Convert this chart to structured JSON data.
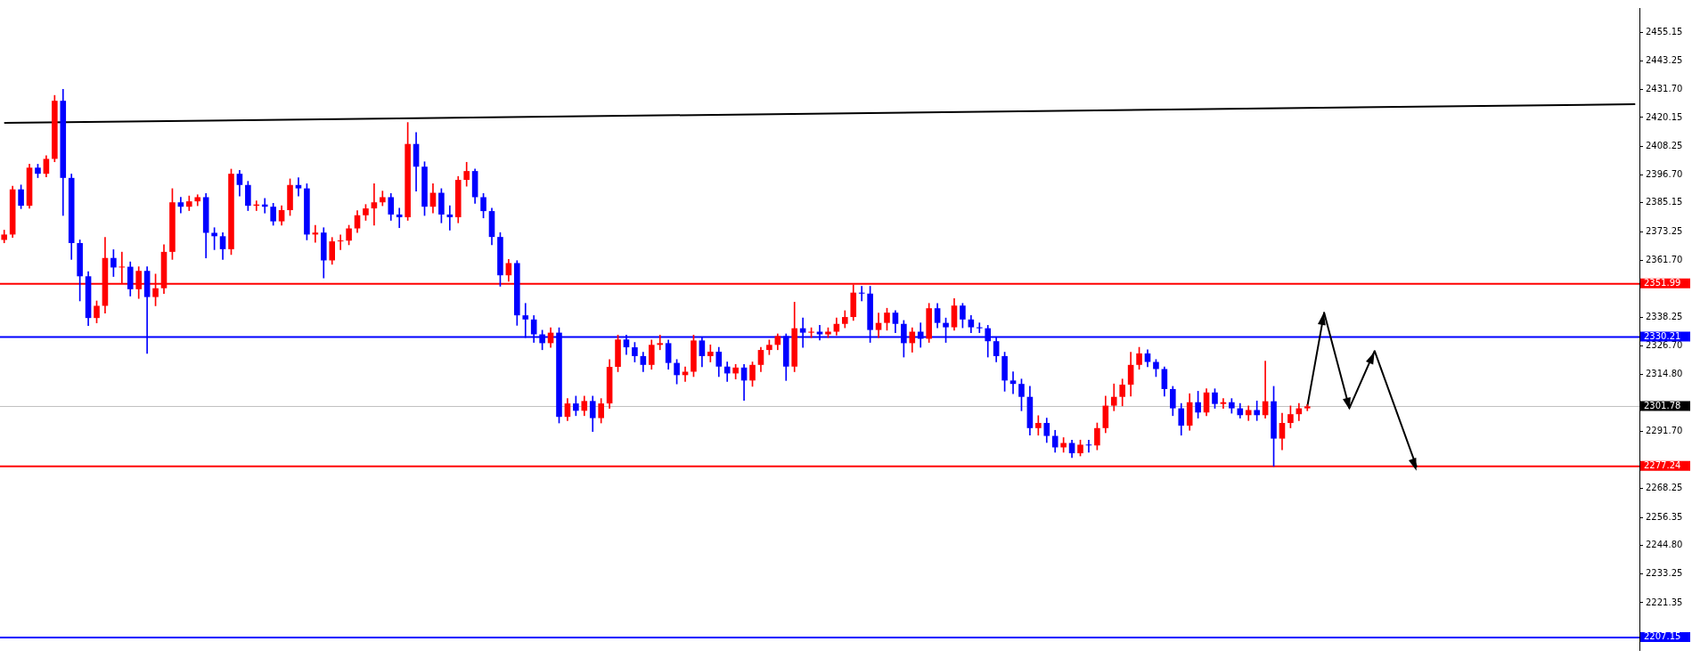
{
  "chart_data": {
    "type": "candlestick",
    "categories": [
      null,
      null,
      null,
      null,
      null,
      null,
      null,
      null,
      null,
      null,
      null,
      null,
      null,
      null,
      null,
      null,
      null,
      null,
      null,
      null,
      null,
      null,
      null,
      null,
      null,
      null,
      null,
      null,
      null,
      null,
      null,
      null,
      null,
      null,
      null,
      null,
      null,
      null,
      null,
      null,
      null,
      null,
      null,
      null,
      null,
      null,
      null,
      null,
      null,
      null,
      null,
      null,
      null,
      null,
      null,
      null,
      null,
      null,
      null,
      null,
      null,
      null,
      null,
      null,
      null,
      null,
      null,
      null,
      null,
      null,
      null,
      null,
      null,
      null,
      null,
      null,
      null,
      null,
      null,
      null,
      null,
      null,
      null,
      null,
      null,
      null,
      null,
      null,
      null,
      null,
      null,
      null,
      null,
      null,
      null,
      null,
      null,
      null,
      null,
      null,
      null,
      null,
      null,
      null,
      null,
      null,
      null,
      null,
      null,
      null,
      null,
      null,
      null,
      null,
      null,
      null,
      null,
      null,
      null,
      null,
      null,
      null,
      null,
      null,
      null,
      null,
      null,
      null,
      null,
      null,
      null,
      null,
      null,
      null,
      null,
      null,
      null,
      null,
      null,
      null,
      null,
      null,
      null,
      null,
      null,
      null,
      null,
      null,
      null,
      null,
      null,
      null,
      null,
      null,
      null,
      null,
      null,
      null,
      null,
      null,
      null,
      null,
      null,
      null,
      null,
      null,
      null,
      null,
      null,
      null,
      null,
      null,
      null,
      null,
      null,
      null,
      null,
      null,
      null,
      null,
      null,
      null,
      null,
      null,
      null,
      null,
      null,
      null,
      null,
      null,
      null,
      null,
      null,
      null,
      null
    ],
    "ohlc": [
      [
        2370,
        2374,
        2368.8,
        2372.2
      ],
      [
        2372.2,
        2392,
        2371,
        2390.7
      ],
      [
        2390.7,
        2392.5,
        2382.8,
        2384
      ],
      [
        2384,
        2401,
        2383,
        2399.6
      ],
      [
        2399.6,
        2401,
        2395.5,
        2397.1
      ],
      [
        2397.1,
        2404.5,
        2395.8,
        2403.2
      ],
      [
        2403.2,
        2429.2,
        2402,
        2427
      ],
      [
        2427,
        2431.7,
        2380,
        2395.4
      ],
      [
        2395.4,
        2397,
        2362,
        2368.7
      ],
      [
        2368.7,
        2370,
        2345,
        2355.1
      ],
      [
        2355.1,
        2357,
        2334.9,
        2338
      ],
      [
        2338,
        2345,
        2336,
        2343
      ],
      [
        2343,
        2371,
        2340,
        2362.6
      ],
      [
        2362.6,
        2366,
        2355,
        2358.7
      ],
      [
        2358.7,
        2365,
        2352,
        2359
      ],
      [
        2359,
        2361,
        2347,
        2349.8
      ],
      [
        2349.8,
        2359,
        2346,
        2357.3
      ],
      [
        2357.3,
        2359,
        2323.5,
        2346.6
      ],
      [
        2346.6,
        2356,
        2343,
        2350.2
      ],
      [
        2350.2,
        2368,
        2348,
        2365.1
      ],
      [
        2365.1,
        2391,
        2362,
        2385.4
      ],
      [
        2385.4,
        2387.5,
        2381,
        2383.6
      ],
      [
        2383.6,
        2388,
        2382,
        2385.8
      ],
      [
        2385.8,
        2388.5,
        2384,
        2387.5
      ],
      [
        2387.5,
        2389,
        2362.6,
        2372.9
      ],
      [
        2372.9,
        2375,
        2366,
        2371.5
      ],
      [
        2371.5,
        2373,
        2362,
        2366.2
      ],
      [
        2366.2,
        2399,
        2364,
        2397.1
      ],
      [
        2397.1,
        2398.5,
        2388,
        2392.5
      ],
      [
        2392.5,
        2394,
        2382,
        2384
      ],
      [
        2384,
        2386,
        2382,
        2384.5
      ],
      [
        2384.5,
        2387,
        2381,
        2383.6
      ],
      [
        2383.6,
        2385,
        2376,
        2377.6
      ],
      [
        2377.6,
        2384,
        2376,
        2382.2
      ],
      [
        2382.2,
        2395,
        2380,
        2392.5
      ],
      [
        2392.5,
        2395.5,
        2388,
        2391.1
      ],
      [
        2391.1,
        2393,
        2370,
        2372.2
      ],
      [
        2372.2,
        2376,
        2369,
        2373
      ],
      [
        2373,
        2375,
        2354.4,
        2361.6
      ],
      [
        2361.6,
        2371,
        2360,
        2369.4
      ],
      [
        2369.4,
        2372,
        2366,
        2369.7
      ],
      [
        2369.7,
        2376,
        2368,
        2374.7
      ],
      [
        2374.7,
        2382,
        2373,
        2380.1
      ],
      [
        2380.1,
        2384.5,
        2378,
        2382.9
      ],
      [
        2382.9,
        2393,
        2376,
        2385.4
      ],
      [
        2385.4,
        2390,
        2384,
        2387.5
      ],
      [
        2387.5,
        2389,
        2378,
        2380.4
      ],
      [
        2380.4,
        2383,
        2375,
        2379.3
      ],
      [
        2379.3,
        2418.1,
        2378,
        2409.3
      ],
      [
        2409.3,
        2414,
        2390,
        2400
      ],
      [
        2400,
        2402,
        2380,
        2383.6
      ],
      [
        2383.6,
        2393,
        2381,
        2389.3
      ],
      [
        2389.3,
        2391,
        2377,
        2380.4
      ],
      [
        2380.4,
        2384,
        2374,
        2379.3
      ],
      [
        2379.3,
        2396,
        2377,
        2394.6
      ],
      [
        2394.6,
        2401.8,
        2392,
        2398.2
      ],
      [
        2398.2,
        2399,
        2385,
        2387.5
      ],
      [
        2387.5,
        2389,
        2379,
        2381.8
      ],
      [
        2381.8,
        2383,
        2368,
        2371.2
      ],
      [
        2371.2,
        2373,
        2351,
        2355.5
      ],
      [
        2355.5,
        2362,
        2353,
        2360.5
      ],
      [
        2360.5,
        2361.5,
        2335,
        2339.1
      ],
      [
        2339.1,
        2344,
        2330,
        2337.4
      ],
      [
        2337.4,
        2339,
        2328,
        2331.3
      ],
      [
        2331.3,
        2333,
        2325,
        2327.7
      ],
      [
        2327.7,
        2334,
        2326,
        2332
      ],
      [
        2332,
        2334,
        2295,
        2297.5
      ],
      [
        2297.5,
        2305,
        2296,
        2303
      ],
      [
        2303,
        2306,
        2298,
        2300
      ],
      [
        2300,
        2306,
        2298,
        2304
      ],
      [
        2304,
        2306,
        2291.5,
        2297
      ],
      [
        2297,
        2305,
        2295,
        2303
      ],
      [
        2303,
        2321,
        2301,
        2318
      ],
      [
        2318,
        2331,
        2316,
        2329.2
      ],
      [
        2329.2,
        2331,
        2323,
        2326
      ],
      [
        2326,
        2328,
        2320,
        2322.4
      ],
      [
        2322.4,
        2324,
        2316,
        2318.8
      ],
      [
        2318.8,
        2329,
        2317,
        2327
      ],
      [
        2327,
        2331,
        2325,
        2327.7
      ],
      [
        2327.7,
        2329,
        2317,
        2319.6
      ],
      [
        2319.6,
        2321,
        2311,
        2314.6
      ],
      [
        2314.6,
        2318,
        2312,
        2316
      ],
      [
        2316,
        2331,
        2314,
        2328.8
      ],
      [
        2328.8,
        2330,
        2318,
        2322.4
      ],
      [
        2322.4,
        2327,
        2320,
        2324.2
      ],
      [
        2324.2,
        2326,
        2314,
        2318.1
      ],
      [
        2318.1,
        2320,
        2312,
        2315.3
      ],
      [
        2315.3,
        2319,
        2313,
        2317.7
      ],
      [
        2317.7,
        2319,
        2304.3,
        2312.4
      ],
      [
        2312.4,
        2320,
        2310,
        2318.8
      ],
      [
        2318.8,
        2326,
        2316,
        2324.9
      ],
      [
        2324.9,
        2329,
        2323,
        2327
      ],
      [
        2327,
        2331.5,
        2325,
        2330.6
      ],
      [
        2330.6,
        2331.5,
        2312.4,
        2318.1
      ],
      [
        2318.1,
        2344.5,
        2316,
        2333.8
      ],
      [
        2333.8,
        2338,
        2326,
        2332
      ],
      [
        2332,
        2334,
        2330,
        2332.4
      ],
      [
        2332.4,
        2335,
        2329,
        2331.3
      ],
      [
        2331.3,
        2334,
        2330,
        2332.4
      ],
      [
        2332.4,
        2338,
        2331,
        2335.6
      ],
      [
        2335.6,
        2341,
        2334,
        2338.4
      ],
      [
        2338.4,
        2351.6,
        2337,
        2348.4
      ],
      [
        2348.4,
        2351,
        2345,
        2348
      ],
      [
        2348,
        2351,
        2328,
        2333.1
      ],
      [
        2333.1,
        2340,
        2330,
        2336
      ],
      [
        2336,
        2342,
        2333,
        2340.2
      ],
      [
        2340.2,
        2341,
        2332,
        2335.6
      ],
      [
        2335.6,
        2337,
        2322,
        2327.7
      ],
      [
        2327.7,
        2334,
        2324,
        2332.4
      ],
      [
        2332.4,
        2336,
        2326,
        2329.5
      ],
      [
        2329.5,
        2344,
        2328,
        2342
      ],
      [
        2342,
        2344,
        2334,
        2336
      ],
      [
        2336,
        2338,
        2328,
        2334.2
      ],
      [
        2334.2,
        2346,
        2333,
        2343.1
      ],
      [
        2343.1,
        2344,
        2334,
        2337.4
      ],
      [
        2337.4,
        2339,
        2332,
        2334.2
      ],
      [
        2334.2,
        2336,
        2332,
        2333.8
      ],
      [
        2333.8,
        2335,
        2322,
        2328.5
      ],
      [
        2328.5,
        2330,
        2320,
        2322.4
      ],
      [
        2322.4,
        2324,
        2308,
        2312.4
      ],
      [
        2312.4,
        2316,
        2307,
        2311
      ],
      [
        2311,
        2313,
        2300,
        2305.7
      ],
      [
        2305.7,
        2310,
        2290,
        2292.9
      ],
      [
        2292.9,
        2298,
        2290,
        2295
      ],
      [
        2295,
        2297,
        2287,
        2289.7
      ],
      [
        2289.7,
        2292,
        2283,
        2285
      ],
      [
        2285,
        2289,
        2283,
        2286.8
      ],
      [
        2286.8,
        2288,
        2280.8,
        2282.6
      ],
      [
        2282.6,
        2288,
        2281.5,
        2286.1
      ],
      [
        2286.1,
        2288,
        2283,
        2285.8
      ],
      [
        2285.8,
        2295,
        2284,
        2292.9
      ],
      [
        2292.9,
        2306,
        2291,
        2302.1
      ],
      [
        2302.1,
        2311,
        2300,
        2305.7
      ],
      [
        2305.7,
        2313,
        2302,
        2310.7
      ],
      [
        2310.7,
        2324,
        2306,
        2318.8
      ],
      [
        2318.8,
        2326,
        2317,
        2323.5
      ],
      [
        2323.5,
        2325,
        2318,
        2320
      ],
      [
        2320,
        2321,
        2314,
        2317.1
      ],
      [
        2317.1,
        2318,
        2306,
        2308.9
      ],
      [
        2308.9,
        2310,
        2298,
        2301
      ],
      [
        2301,
        2303,
        2290,
        2293.9
      ],
      [
        2293.9,
        2307,
        2292,
        2303.5
      ],
      [
        2303.5,
        2308,
        2297,
        2299.3
      ],
      [
        2299.3,
        2309,
        2298,
        2307.5
      ],
      [
        2307.5,
        2309,
        2301,
        2302.8
      ],
      [
        2302.8,
        2305,
        2301,
        2303.5
      ],
      [
        2303.5,
        2305,
        2299,
        2301
      ],
      [
        2301,
        2303,
        2297,
        2298.2
      ],
      [
        2298.2,
        2302,
        2296,
        2300.3
      ],
      [
        2300.3,
        2304,
        2296,
        2298.2
      ],
      [
        2298.2,
        2320.3,
        2297,
        2303.9
      ],
      [
        2303.9,
        2310,
        2277.3,
        2288.6
      ],
      [
        2288.6,
        2299,
        2284,
        2295
      ],
      [
        2295,
        2302,
        2293,
        2298.6
      ],
      [
        2298.6,
        2303,
        2296,
        2301
      ],
      [
        2301,
        2302.5,
        2300,
        2301.8
      ],
      null,
      null,
      null,
      null,
      null,
      null,
      null,
      null,
      null,
      null,
      null,
      null,
      null,
      null,
      null,
      null,
      null,
      null,
      null,
      null,
      null,
      null,
      null,
      null,
      null,
      null,
      null,
      null,
      null,
      null,
      null,
      null,
      null,
      null,
      null,
      null,
      null,
      null,
      null
    ],
    "colors": [
      "#ff0000",
      "#ff0000",
      "#0000ff",
      "#ff0000",
      "#0000ff",
      "#ff0000",
      "#ff0000",
      "#0000ff",
      "#0000ff",
      "#0000ff",
      "#0000ff",
      "#ff0000",
      "#ff0000",
      "#0000ff",
      "#ff0000",
      "#0000ff",
      "#ff0000",
      "#0000ff",
      "#ff0000",
      "#ff0000",
      "#ff0000",
      "#0000ff",
      "#ff0000",
      "#ff0000",
      "#0000ff",
      "#0000ff",
      "#0000ff",
      "#ff0000",
      "#0000ff",
      "#0000ff",
      "#ff0000",
      "#0000ff",
      "#0000ff",
      "#ff0000",
      "#ff0000",
      "#0000ff",
      "#0000ff",
      "#ff0000",
      "#0000ff",
      "#ff0000",
      "#ff0000",
      "#ff0000",
      "#ff0000",
      "#ff0000",
      "#ff0000",
      "#ff0000",
      "#0000ff",
      "#0000ff",
      "#ff0000",
      "#0000ff",
      "#0000ff",
      "#ff0000",
      "#0000ff",
      "#0000ff",
      "#ff0000",
      "#ff0000",
      "#0000ff",
      "#0000ff",
      "#0000ff",
      "#0000ff",
      "#ff0000",
      "#0000ff",
      "#0000ff",
      "#0000ff",
      "#0000ff",
      "#ff0000",
      "#0000ff",
      "#ff0000",
      "#0000ff",
      "#ff0000",
      "#0000ff",
      "#ff0000",
      "#ff0000",
      "#ff0000",
      "#0000ff",
      "#0000ff",
      "#0000ff",
      "#ff0000",
      "#ff0000",
      "#0000ff",
      "#0000ff",
      "#ff0000",
      "#ff0000",
      "#0000ff",
      "#ff0000",
      "#0000ff",
      "#0000ff",
      "#ff0000",
      "#0000ff",
      "#ff0000",
      "#ff0000",
      "#ff0000",
      "#ff0000",
      "#0000ff",
      "#ff0000",
      "#0000ff",
      "#ff0000",
      "#0000ff",
      "#ff0000",
      "#ff0000",
      "#ff0000",
      "#ff0000",
      "#0000ff",
      "#0000ff",
      "#ff0000",
      "#ff0000",
      "#0000ff",
      "#0000ff",
      "#ff0000",
      "#0000ff",
      "#ff0000",
      "#0000ff",
      "#0000ff",
      "#ff0000",
      "#0000ff",
      "#0000ff",
      "#0000ff",
      "#0000ff",
      "#0000ff",
      "#0000ff",
      "#0000ff",
      "#0000ff",
      "#0000ff",
      "#ff0000",
      "#0000ff",
      "#0000ff",
      "#ff0000",
      "#0000ff",
      "#ff0000",
      "#0000ff",
      "#ff0000",
      "#ff0000",
      "#ff0000",
      "#ff0000",
      "#ff0000",
      "#ff0000",
      "#0000ff",
      "#0000ff",
      "#0000ff",
      "#0000ff",
      "#0000ff",
      "#ff0000",
      "#0000ff",
      "#ff0000",
      "#0000ff",
      "#ff0000",
      "#0000ff",
      "#0000ff",
      "#ff0000",
      "#0000ff",
      "#ff0000",
      "#0000ff",
      "#ff0000",
      "#ff0000",
      "#ff0000",
      "#ff0000",
      null,
      null,
      null,
      null,
      null,
      null,
      null,
      null,
      null,
      null,
      null,
      null,
      null,
      null,
      null,
      null,
      null,
      null,
      null,
      null,
      null,
      null,
      null,
      null,
      null,
      null,
      null,
      null,
      null,
      null,
      null,
      null,
      null,
      null,
      null,
      null,
      null,
      null,
      null
    ],
    "series": [
      {
        "type": "line",
        "color": "#000000",
        "values": [
          2417.9,
          null,
          null,
          null,
          null,
          null,
          null,
          null,
          null,
          null,
          null,
          null,
          null,
          null,
          null,
          null,
          null,
          null,
          null,
          null,
          null,
          null,
          null,
          null,
          null,
          null,
          null,
          null,
          null,
          null,
          null,
          null,
          null,
          null,
          null,
          null,
          null,
          null,
          null,
          null,
          null,
          null,
          null,
          null,
          null,
          null,
          null,
          null,
          null,
          null,
          null,
          null,
          null,
          null,
          null,
          null,
          null,
          null,
          null,
          null,
          null,
          null,
          null,
          null,
          null,
          null,
          null,
          null,
          null,
          null,
          null,
          null,
          null,
          null,
          null,
          null,
          null,
          null,
          null,
          null,
          null,
          null,
          null,
          null,
          null,
          null,
          null,
          null,
          null,
          null,
          null,
          null,
          null,
          null,
          null,
          null,
          null,
          null,
          null,
          null,
          null,
          null,
          null,
          null,
          null,
          null,
          null,
          null,
          null,
          null,
          null,
          null,
          null,
          null,
          null,
          null,
          null,
          null,
          null,
          null,
          null,
          null,
          null,
          null,
          null,
          null,
          null,
          null,
          null,
          null,
          null,
          null,
          null,
          null,
          null,
          null,
          null,
          null,
          null,
          null,
          null,
          null,
          null,
          null,
          null,
          null,
          null,
          null,
          null,
          null,
          null,
          null,
          null,
          null,
          null,
          null,
          null,
          null,
          null,
          null,
          null,
          null,
          null,
          null,
          null,
          null,
          null,
          null,
          null,
          null,
          null,
          null,
          null,
          null,
          null,
          null,
          null,
          null,
          null,
          null,
          null,
          null,
          null,
          null,
          null,
          null,
          null,
          null,
          null,
          null,
          null,
          null,
          null,
          null,
          2425.6
        ]
      },
      {
        "type": "line",
        "color": "#000000",
        "values": [
          null,
          null,
          null,
          null,
          null,
          null,
          null,
          null,
          null,
          null,
          null,
          null,
          null,
          null,
          null,
          null,
          null,
          null,
          null,
          null,
          null,
          null,
          null,
          null,
          null,
          null,
          null,
          null,
          null,
          null,
          null,
          null,
          null,
          null,
          null,
          null,
          null,
          null,
          null,
          null,
          null,
          null,
          null,
          null,
          null,
          null,
          null,
          null,
          null,
          null,
          null,
          null,
          null,
          null,
          null,
          null,
          null,
          null,
          null,
          null,
          null,
          null,
          null,
          null,
          null,
          null,
          null,
          null,
          null,
          null,
          null,
          null,
          null,
          null,
          null,
          null,
          null,
          null,
          null,
          null,
          null,
          null,
          null,
          null,
          null,
          null,
          null,
          null,
          null,
          null,
          null,
          null,
          null,
          null,
          null,
          null,
          null,
          null,
          null,
          null,
          null,
          null,
          null,
          null,
          null,
          null,
          null,
          null,
          null,
          null,
          null,
          null,
          null,
          null,
          null,
          null,
          null,
          null,
          null,
          null,
          null,
          null,
          null,
          null,
          null,
          null,
          null,
          null,
          null,
          null,
          null,
          null,
          null,
          null,
          null,
          null,
          null,
          null,
          null,
          null,
          null,
          null,
          null,
          null,
          null,
          null,
          null,
          null,
          null,
          null,
          null,
          null,
          null,
          null,
          null,
          2301.8,
          null,
          2340.2,
          null,
          null,
          2301.1,
          null,
          null,
          2324.5,
          null,
          null,
          null,
          null,
          2276.9,
          null,
          null,
          null,
          null,
          null,
          null,
          null,
          null,
          null,
          null,
          null,
          null,
          null,
          null,
          null,
          null,
          null,
          null,
          null,
          null,
          null,
          null,
          null,
          null,
          null,
          null
        ]
      }
    ],
    "ylim": [
      2202,
      2465
    ],
    "yticks": [
      2455.15,
      2443.25,
      {
        "value": 2431.7,
        "label": "2431.70"
      },
      2420.15,
      2408.25,
      {
        "value": 2396.7,
        "label": "2396.70"
      },
      2385.15,
      2373.25,
      {
        "value": 2361.7,
        "label": "2361.70"
      },
      2338.25,
      {
        "value": 2326.7,
        "label": "2326.70"
      },
      {
        "value": 2314.8,
        "label": "2314.80"
      },
      {
        "value": 2291.7,
        "label": "2291.70"
      },
      2268.25,
      2256.35,
      {
        "value": 2244.8,
        "label": "2244.80"
      },
      2233.25,
      2221.35
    ],
    "tick_labels": "y",
    "marker": "none",
    "ref_lines": [
      {
        "axis": "y",
        "value": 2351.99,
        "label": "2351.99",
        "color": "#ff0000"
      },
      {
        "axis": "y",
        "value": 2330.21,
        "label": "2330.21",
        "color": "#0000ff"
      },
      {
        "axis": "y",
        "value": 2301.78,
        "label": "2301.78",
        "color": "#c0c0c0"
      },
      {
        "axis": "y",
        "value": 2277.24,
        "label": "2277.24",
        "color": "#ff0000"
      },
      {
        "axis": "y",
        "value": 2207.15,
        "label": "2207.15",
        "color": "#0000ff"
      }
    ]
  }
}
